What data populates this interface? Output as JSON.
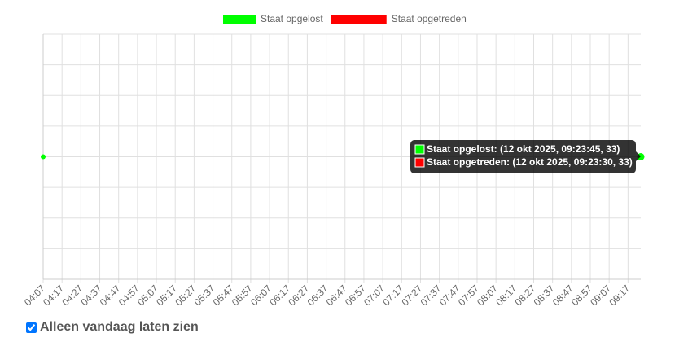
{
  "chart_data": {
    "type": "scatter",
    "series": [
      {
        "name": "Staat opgelost",
        "color": "#00ff00",
        "x": [
          "04:07:00",
          "09:23:45"
        ],
        "values": [
          33,
          33
        ]
      },
      {
        "name": "Staat opgetreden",
        "color": "#ff0000",
        "x": [
          "09:23:30"
        ],
        "values": [
          33
        ]
      }
    ],
    "xlim": [
      "04:07:00",
      "09:23:45"
    ],
    "xticks": [
      "04:07",
      "04:17",
      "04:27",
      "04:37",
      "04:47",
      "04:57",
      "05:07",
      "05:17",
      "05:27",
      "05:37",
      "05:47",
      "05:57",
      "06:07",
      "06:17",
      "06:27",
      "06:37",
      "06:47",
      "06:57",
      "07:07",
      "07:17",
      "07:27",
      "07:37",
      "07:47",
      "07:57",
      "08:07",
      "08:17",
      "08:27",
      "08:37",
      "08:47",
      "08:57",
      "09:07",
      "09:17"
    ],
    "ylim": [
      32,
      34
    ],
    "ygrid": [
      32,
      32.25,
      32.5,
      32.75,
      33,
      33.25,
      33.5,
      33.75,
      34
    ],
    "grid": true,
    "tooltip": [
      "Staat opgelost: (12 okt 2025, 09:23:45, 33)",
      "Staat opgetreden: (12 okt 2025, 09:23:30, 33)"
    ]
  },
  "controls": {
    "checkbox_label": "Alleen vandaag laten zien",
    "checked": true
  }
}
